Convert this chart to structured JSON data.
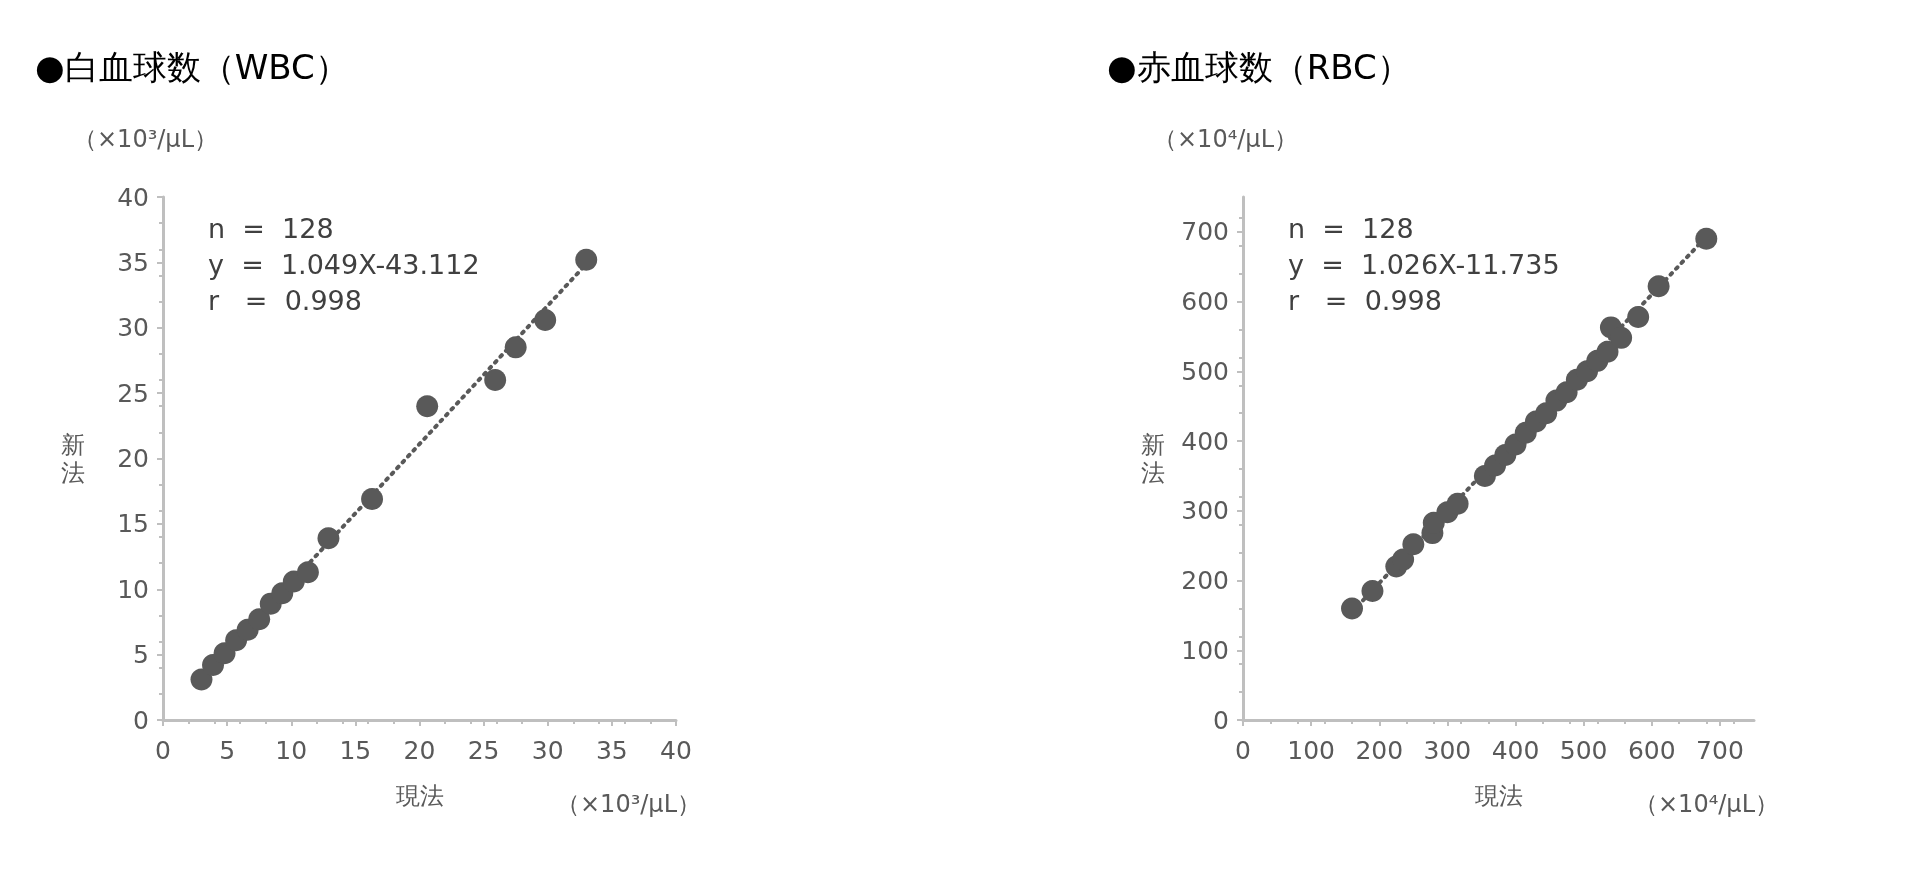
{
  "chart_data": [
    {
      "type": "scatter",
      "title": "●白血球数（WBC）",
      "xlabel": "現法",
      "ylabel": "新法",
      "annotations": [
        "（×10³/μL）",
        "（×10³/μL）",
        "n  =  128",
        "y  =  1.049X-43.112",
        "r   =  0.998"
      ],
      "xlim": [
        0,
        40
      ],
      "ylim": [
        0,
        40
      ],
      "xticks": [
        0,
        5,
        10,
        15,
        20,
        25,
        30,
        35,
        40
      ],
      "yticks": [
        0,
        5,
        10,
        15,
        20,
        25,
        30,
        35,
        40
      ],
      "grid": false,
      "series": [
        {
          "marker": "circle",
          "color": "#595959",
          "x": [
            3,
            3.9,
            4.8,
            5.7,
            6.6,
            7.5,
            8.4,
            9.3,
            10.2,
            11.3,
            12.9,
            16.3,
            20.6,
            25.9,
            27.5,
            29.8,
            33
          ],
          "values": [
            3.1,
            4.2,
            5.1,
            6.1,
            6.9,
            7.7,
            8.9,
            9.7,
            10.6,
            11.3,
            13.9,
            16.9,
            24,
            26,
            28.5,
            30.6,
            35.2
          ]
        },
        {
          "type": "line",
          "marker": "none",
          "line_style": "dotted",
          "color": "#595959",
          "x": [
            3,
            33.5
          ],
          "values": [
            3.1,
            35.4
          ]
        }
      ]
    },
    {
      "type": "scatter",
      "title": "●赤血球数（RBC）",
      "xlabel": "現法",
      "ylabel": "新法",
      "annotations": [
        "（×10⁴/μL）",
        "（×10⁴/μL）",
        "n  =  128",
        "y  =  1.026X-11.735",
        "r   =  0.998"
      ],
      "xlim": [
        0,
        750
      ],
      "ylim": [
        0,
        750
      ],
      "xticks": [
        0,
        100,
        200,
        300,
        400,
        500,
        600,
        700
      ],
      "yticks": [
        0,
        100,
        200,
        300,
        400,
        500,
        600,
        700
      ],
      "grid": false,
      "series": [
        {
          "marker": "circle",
          "color": "#595959",
          "x": [
            160,
            190,
            225,
            235,
            250,
            278,
            280,
            300,
            315,
            355,
            370,
            385,
            400,
            415,
            430,
            445,
            460,
            475,
            490,
            505,
            520,
            535,
            540,
            555,
            580,
            610,
            680
          ],
          "values": [
            160,
            185,
            220,
            230,
            252,
            268,
            283,
            298,
            310,
            350,
            365,
            380,
            395,
            412,
            428,
            440,
            458,
            470,
            488,
            500,
            515,
            528,
            563,
            548,
            578,
            622,
            690
          ]
        },
        {
          "type": "line",
          "marker": "none",
          "line_style": "dotted",
          "color": "#595959",
          "x": [
            160,
            680
          ],
          "values": [
            155,
            693
          ]
        }
      ]
    }
  ]
}
